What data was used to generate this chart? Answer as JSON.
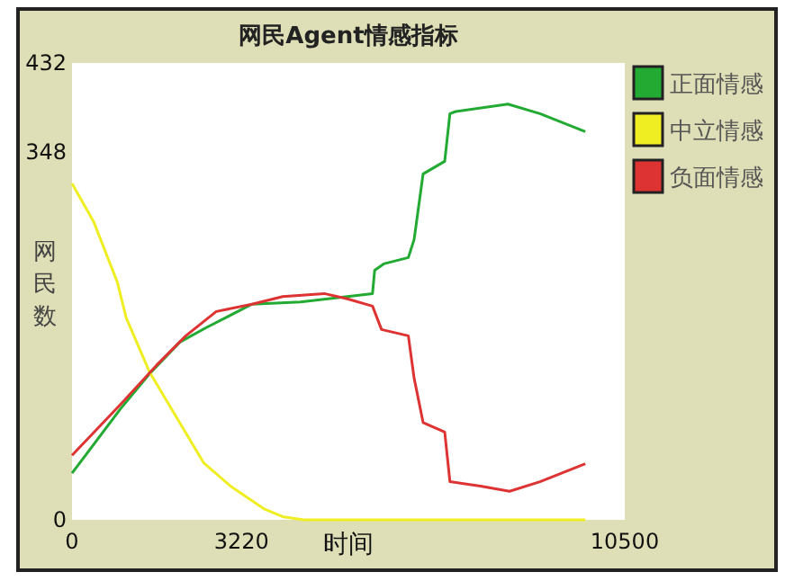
{
  "chart_data": {
    "type": "line",
    "title": "网民Agent情感指标",
    "xlabel": "时间",
    "ylabel": "网民数",
    "xlim": [
      0,
      10500
    ],
    "ylim": [
      0,
      432
    ],
    "xticks": [
      0,
      3220,
      10500
    ],
    "yticks": [
      0,
      348,
      432
    ],
    "legend": "right",
    "grid": false,
    "series": [
      {
        "name": "正面情感",
        "color": "#22aa33",
        "x": [
          0,
          920,
          1470,
          2050,
          2560,
          3420,
          4340,
          5230,
          5710,
          5750,
          5920,
          6390,
          6500,
          6570,
          6670,
          7080,
          7180,
          7290,
          8280,
          8890,
          9750
        ],
        "values": [
          44,
          105,
          138,
          168,
          182,
          204,
          206,
          211,
          214,
          236,
          242,
          248,
          265,
          291,
          327,
          339,
          384,
          386,
          393,
          384,
          367
        ]
      },
      {
        "name": "中立情感",
        "color": "#eeee22",
        "x": [
          0,
          410,
          860,
          1030,
          1470,
          1950,
          2500,
          3010,
          3660,
          4000,
          4400,
          9750
        ],
        "values": [
          318,
          282,
          225,
          191,
          140,
          100,
          54,
          32,
          10,
          3,
          0,
          0
        ]
      },
      {
        "name": "负面情感",
        "color": "#dd3333",
        "x": [
          0,
          920,
          1600,
          2160,
          2740,
          3420,
          4000,
          4790,
          5230,
          5710,
          5880,
          6390,
          6500,
          6670,
          7080,
          7180,
          7760,
          8310,
          8890,
          9750
        ],
        "values": [
          61,
          109,
          146,
          174,
          197,
          204,
          211,
          214,
          209,
          202,
          180,
          174,
          134,
          92,
          83,
          36,
          32,
          27,
          36,
          53
        ]
      }
    ]
  }
}
